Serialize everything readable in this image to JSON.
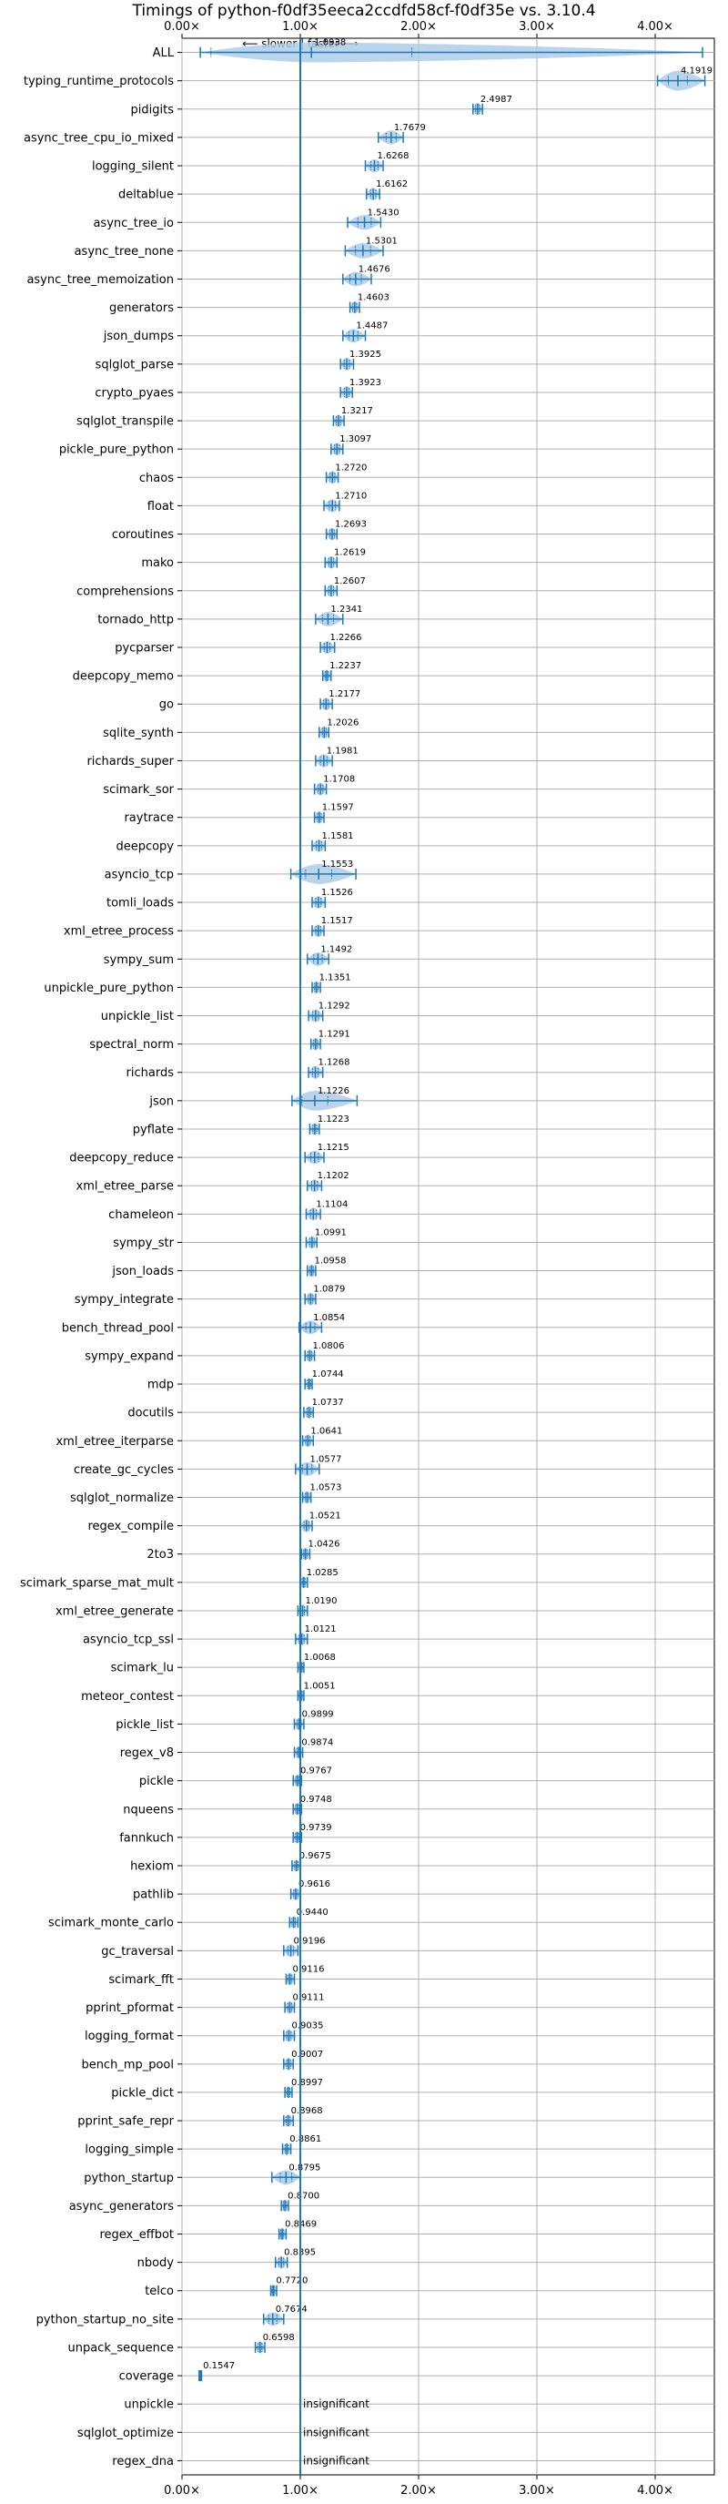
{
  "chart_data": {
    "type": "violin",
    "title": "Timings of python-f0df35eeca2ccdfd58cf-f0df35e vs. 3.10.4",
    "xlim": [
      0,
      4.5
    ],
    "xticks": [
      0,
      1,
      2,
      3,
      4
    ],
    "xtick_labels": [
      "0.00×",
      "1.00×",
      "2.00×",
      "3.00×",
      "4.00×"
    ],
    "reference_line": 1.0,
    "direction_annotation": "⟵ slower | faster ⟶",
    "grid": true,
    "colors": {
      "violin": "#aecde9",
      "line": "#1f77b4",
      "grid": "#b0b0b0",
      "median": "#d62728"
    },
    "insignificant_label": "insignificant",
    "benchmarks": [
      {
        "name": "ALL",
        "value": 1.0938,
        "label": "1.0938",
        "min": 0.1547,
        "max": 4.4,
        "wide": true
      },
      {
        "name": "typing_runtime_protocols",
        "value": 4.1919,
        "label": "4.1919",
        "min": 4.02,
        "max": 4.42,
        "wide": true
      },
      {
        "name": "pidigits",
        "value": 2.4987,
        "label": "2.4987",
        "min": 2.46,
        "max": 2.54
      },
      {
        "name": "async_tree_cpu_io_mixed",
        "value": 1.7679,
        "label": "1.7679",
        "min": 1.66,
        "max": 1.87
      },
      {
        "name": "logging_silent",
        "value": 1.6268,
        "label": "1.6268",
        "min": 1.55,
        "max": 1.7
      },
      {
        "name": "deltablue",
        "value": 1.6162,
        "label": "1.6162",
        "min": 1.56,
        "max": 1.67
      },
      {
        "name": "async_tree_io",
        "value": 1.543,
        "label": "1.5430",
        "min": 1.4,
        "max": 1.68
      },
      {
        "name": "async_tree_none",
        "value": 1.5301,
        "label": "1.5301",
        "min": 1.38,
        "max": 1.7
      },
      {
        "name": "async_tree_memoization",
        "value": 1.4676,
        "label": "1.4676",
        "min": 1.36,
        "max": 1.6
      },
      {
        "name": "generators",
        "value": 1.4603,
        "label": "1.4603",
        "min": 1.42,
        "max": 1.5
      },
      {
        "name": "json_dumps",
        "value": 1.4487,
        "label": "1.4487",
        "min": 1.36,
        "max": 1.55
      },
      {
        "name": "sqlglot_parse",
        "value": 1.3925,
        "label": "1.3925",
        "min": 1.34,
        "max": 1.45
      },
      {
        "name": "crypto_pyaes",
        "value": 1.3923,
        "label": "1.3923",
        "min": 1.34,
        "max": 1.44
      },
      {
        "name": "sqlglot_transpile",
        "value": 1.3217,
        "label": "1.3217",
        "min": 1.28,
        "max": 1.37
      },
      {
        "name": "pickle_pure_python",
        "value": 1.3097,
        "label": "1.3097",
        "min": 1.26,
        "max": 1.36
      },
      {
        "name": "chaos",
        "value": 1.272,
        "label": "1.2720",
        "min": 1.22,
        "max": 1.32
      },
      {
        "name": "float",
        "value": 1.271,
        "label": "1.2710",
        "min": 1.2,
        "max": 1.33
      },
      {
        "name": "coroutines",
        "value": 1.2693,
        "label": "1.2693",
        "min": 1.22,
        "max": 1.31
      },
      {
        "name": "mako",
        "value": 1.2619,
        "label": "1.2619",
        "min": 1.21,
        "max": 1.31
      },
      {
        "name": "comprehensions",
        "value": 1.2607,
        "label": "1.2607",
        "min": 1.21,
        "max": 1.31
      },
      {
        "name": "tornado_http",
        "value": 1.2341,
        "label": "1.2341",
        "min": 1.13,
        "max": 1.36
      },
      {
        "name": "pycparser",
        "value": 1.2266,
        "label": "1.2266",
        "min": 1.17,
        "max": 1.29
      },
      {
        "name": "deepcopy_memo",
        "value": 1.2237,
        "label": "1.2237",
        "min": 1.19,
        "max": 1.26
      },
      {
        "name": "go",
        "value": 1.2177,
        "label": "1.2177",
        "min": 1.17,
        "max": 1.27
      },
      {
        "name": "sqlite_synth",
        "value": 1.2026,
        "label": "1.2026",
        "min": 1.16,
        "max": 1.24
      },
      {
        "name": "richards_super",
        "value": 1.1981,
        "label": "1.1981",
        "min": 1.13,
        "max": 1.27
      },
      {
        "name": "scimark_sor",
        "value": 1.1708,
        "label": "1.1708",
        "min": 1.12,
        "max": 1.22
      },
      {
        "name": "raytrace",
        "value": 1.1597,
        "label": "1.1597",
        "min": 1.12,
        "max": 1.2
      },
      {
        "name": "deepcopy",
        "value": 1.1581,
        "label": "1.1581",
        "min": 1.1,
        "max": 1.21
      },
      {
        "name": "asyncio_tcp",
        "value": 1.1553,
        "label": "1.1553",
        "min": 0.92,
        "max": 1.47,
        "wide": true
      },
      {
        "name": "tomli_loads",
        "value": 1.1526,
        "label": "1.1526",
        "min": 1.1,
        "max": 1.21
      },
      {
        "name": "xml_etree_process",
        "value": 1.1517,
        "label": "1.1517",
        "min": 1.1,
        "max": 1.2
      },
      {
        "name": "sympy_sum",
        "value": 1.1492,
        "label": "1.1492",
        "min": 1.06,
        "max": 1.24
      },
      {
        "name": "unpickle_pure_python",
        "value": 1.1351,
        "label": "1.1351",
        "min": 1.1,
        "max": 1.17
      },
      {
        "name": "unpickle_list",
        "value": 1.1292,
        "label": "1.1292",
        "min": 1.07,
        "max": 1.19
      },
      {
        "name": "spectral_norm",
        "value": 1.1291,
        "label": "1.1291",
        "min": 1.09,
        "max": 1.17
      },
      {
        "name": "richards",
        "value": 1.1268,
        "label": "1.1268",
        "min": 1.07,
        "max": 1.19
      },
      {
        "name": "json",
        "value": 1.1226,
        "label": "1.1226",
        "min": 0.93,
        "max": 1.48,
        "wide": true
      },
      {
        "name": "pyflate",
        "value": 1.1223,
        "label": "1.1223",
        "min": 1.08,
        "max": 1.16
      },
      {
        "name": "deepcopy_reduce",
        "value": 1.1215,
        "label": "1.1215",
        "min": 1.04,
        "max": 1.2
      },
      {
        "name": "xml_etree_parse",
        "value": 1.1202,
        "label": "1.1202",
        "min": 1.06,
        "max": 1.18
      },
      {
        "name": "chameleon",
        "value": 1.1104,
        "label": "1.1104",
        "min": 1.05,
        "max": 1.17
      },
      {
        "name": "sympy_str",
        "value": 1.0991,
        "label": "1.0991",
        "min": 1.05,
        "max": 1.14
      },
      {
        "name": "json_loads",
        "value": 1.0958,
        "label": "1.0958",
        "min": 1.06,
        "max": 1.13
      },
      {
        "name": "sympy_integrate",
        "value": 1.0879,
        "label": "1.0879",
        "min": 1.04,
        "max": 1.13
      },
      {
        "name": "bench_thread_pool",
        "value": 1.0854,
        "label": "1.0854",
        "min": 0.99,
        "max": 1.18
      },
      {
        "name": "sympy_expand",
        "value": 1.0806,
        "label": "1.0806",
        "min": 1.04,
        "max": 1.12
      },
      {
        "name": "mdp",
        "value": 1.0744,
        "label": "1.0744",
        "min": 1.04,
        "max": 1.1
      },
      {
        "name": "docutils",
        "value": 1.0737,
        "label": "1.0737",
        "min": 1.03,
        "max": 1.11
      },
      {
        "name": "xml_etree_iterparse",
        "value": 1.0641,
        "label": "1.0641",
        "min": 1.02,
        "max": 1.11
      },
      {
        "name": "create_gc_cycles",
        "value": 1.0577,
        "label": "1.0577",
        "min": 0.96,
        "max": 1.16
      },
      {
        "name": "sqlglot_normalize",
        "value": 1.0573,
        "label": "1.0573",
        "min": 1.02,
        "max": 1.09
      },
      {
        "name": "regex_compile",
        "value": 1.0521,
        "label": "1.0521",
        "min": 1.0,
        "max": 1.1
      },
      {
        "name": "2to3",
        "value": 1.0426,
        "label": "1.0426",
        "min": 1.01,
        "max": 1.08
      },
      {
        "name": "scimark_sparse_mat_mult",
        "value": 1.0285,
        "label": "1.0285",
        "min": 1.0,
        "max": 1.06
      },
      {
        "name": "xml_etree_generate",
        "value": 1.019,
        "label": "1.0190",
        "min": 0.98,
        "max": 1.06
      },
      {
        "name": "asyncio_tcp_ssl",
        "value": 1.0121,
        "label": "1.0121",
        "min": 0.96,
        "max": 1.06
      },
      {
        "name": "scimark_lu",
        "value": 1.0068,
        "label": "1.0068",
        "min": 0.98,
        "max": 1.03
      },
      {
        "name": "meteor_contest",
        "value": 1.0051,
        "label": "1.0051",
        "min": 0.98,
        "max": 1.03
      },
      {
        "name": "pickle_list",
        "value": 0.9899,
        "label": "0.9899",
        "min": 0.95,
        "max": 1.03
      },
      {
        "name": "regex_v8",
        "value": 0.9874,
        "label": "0.9874",
        "min": 0.95,
        "max": 1.02
      },
      {
        "name": "pickle",
        "value": 0.9767,
        "label": "0.9767",
        "min": 0.94,
        "max": 1.01
      },
      {
        "name": "nqueens",
        "value": 0.9748,
        "label": "0.9748",
        "min": 0.94,
        "max": 1.01
      },
      {
        "name": "fannkuch",
        "value": 0.9739,
        "label": "0.9739",
        "min": 0.94,
        "max": 1.01
      },
      {
        "name": "hexiom",
        "value": 0.9675,
        "label": "0.9675",
        "min": 0.93,
        "max": 1.0
      },
      {
        "name": "pathlib",
        "value": 0.9616,
        "label": "0.9616",
        "min": 0.92,
        "max": 1.0
      },
      {
        "name": "scimark_monte_carlo",
        "value": 0.944,
        "label": "0.9440",
        "min": 0.91,
        "max": 0.98
      },
      {
        "name": "gc_traversal",
        "value": 0.9196,
        "label": "0.9196",
        "min": 0.86,
        "max": 0.98
      },
      {
        "name": "scimark_fft",
        "value": 0.9116,
        "label": "0.9116",
        "min": 0.88,
        "max": 0.95
      },
      {
        "name": "pprint_pformat",
        "value": 0.9111,
        "label": "0.9111",
        "min": 0.87,
        "max": 0.95
      },
      {
        "name": "logging_format",
        "value": 0.9035,
        "label": "0.9035",
        "min": 0.86,
        "max": 0.95
      },
      {
        "name": "bench_mp_pool",
        "value": 0.9007,
        "label": "0.9007",
        "min": 0.86,
        "max": 0.94
      },
      {
        "name": "pickle_dict",
        "value": 0.8997,
        "label": "0.8997",
        "min": 0.87,
        "max": 0.93
      },
      {
        "name": "pprint_safe_repr",
        "value": 0.8968,
        "label": "0.8968",
        "min": 0.86,
        "max": 0.94
      },
      {
        "name": "logging_simple",
        "value": 0.8861,
        "label": "0.8861",
        "min": 0.85,
        "max": 0.92
      },
      {
        "name": "python_startup",
        "value": 0.8795,
        "label": "0.8795",
        "min": 0.76,
        "max": 1.0
      },
      {
        "name": "async_generators",
        "value": 0.87,
        "label": "0.8700",
        "min": 0.84,
        "max": 0.9
      },
      {
        "name": "regex_effbot",
        "value": 0.8469,
        "label": "0.8469",
        "min": 0.82,
        "max": 0.88
      },
      {
        "name": "nbody",
        "value": 0.8395,
        "label": "0.8395",
        "min": 0.79,
        "max": 0.89
      },
      {
        "name": "telco",
        "value": 0.772,
        "label": "0.7720",
        "min": 0.75,
        "max": 0.8
      },
      {
        "name": "python_startup_no_site",
        "value": 0.7674,
        "label": "0.7674",
        "min": 0.69,
        "max": 0.86
      },
      {
        "name": "unpack_sequence",
        "value": 0.6598,
        "label": "0.6598",
        "min": 0.62,
        "max": 0.7
      },
      {
        "name": "coverage",
        "value": 0.1547,
        "label": "0.1547",
        "min": 0.145,
        "max": 0.165
      },
      {
        "name": "unpickle",
        "insignificant": true
      },
      {
        "name": "sqlglot_optimize",
        "insignificant": true
      },
      {
        "name": "regex_dna",
        "insignificant": true
      }
    ]
  }
}
